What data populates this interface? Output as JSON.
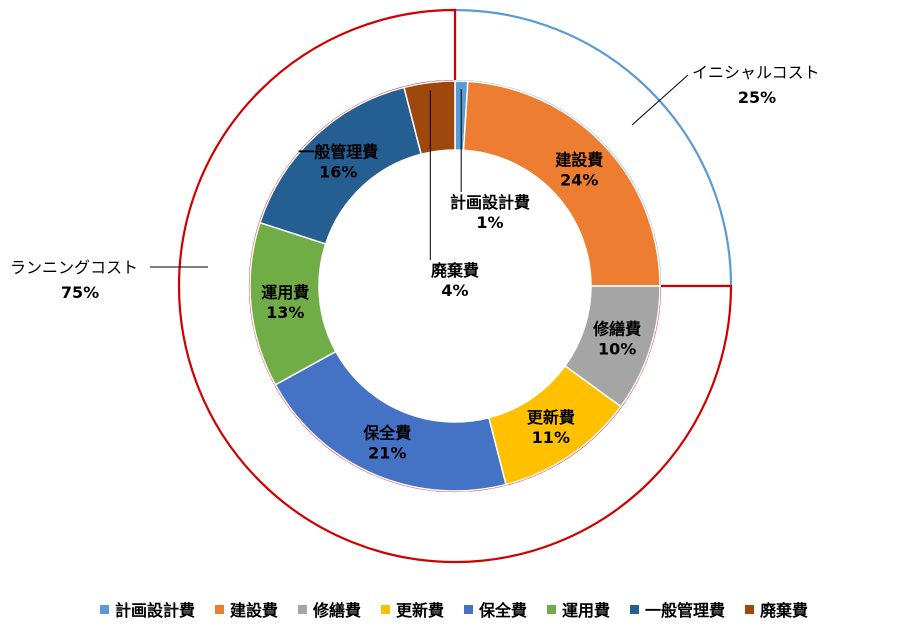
{
  "chart_data": {
    "type": "pie",
    "variant": "double-donut",
    "inner_ring": {
      "categories": [
        "計画設計費",
        "建設費",
        "修繕費",
        "更新費",
        "保全費",
        "運用費",
        "一般管理費",
        "廃棄費"
      ],
      "values": [
        1,
        24,
        10,
        11,
        21,
        13,
        16,
        4
      ],
      "value_labels": [
        "1%",
        "24%",
        "10%",
        "11%",
        "21%",
        "13%",
        "16%",
        "4%"
      ],
      "colors": [
        "#5b9bd5",
        "#ed7d31",
        "#a5a5a5",
        "#ffc000",
        "#4472c4",
        "#70ad47",
        "#255e91",
        "#9e480e"
      ]
    },
    "outer_ring": {
      "categories": [
        "イニシャルコスト",
        "ランニングコスト"
      ],
      "values": [
        25,
        75
      ],
      "value_labels": [
        "25%",
        "75%"
      ],
      "border_colors": [
        "#5b9bd5",
        "#d00000"
      ]
    },
    "legend": {
      "position": "bottom",
      "items": [
        "計画設計費",
        "建設費",
        "修繕費",
        "更新費",
        "保全費",
        "運用費",
        "一般管理費",
        "廃棄費"
      ]
    }
  }
}
